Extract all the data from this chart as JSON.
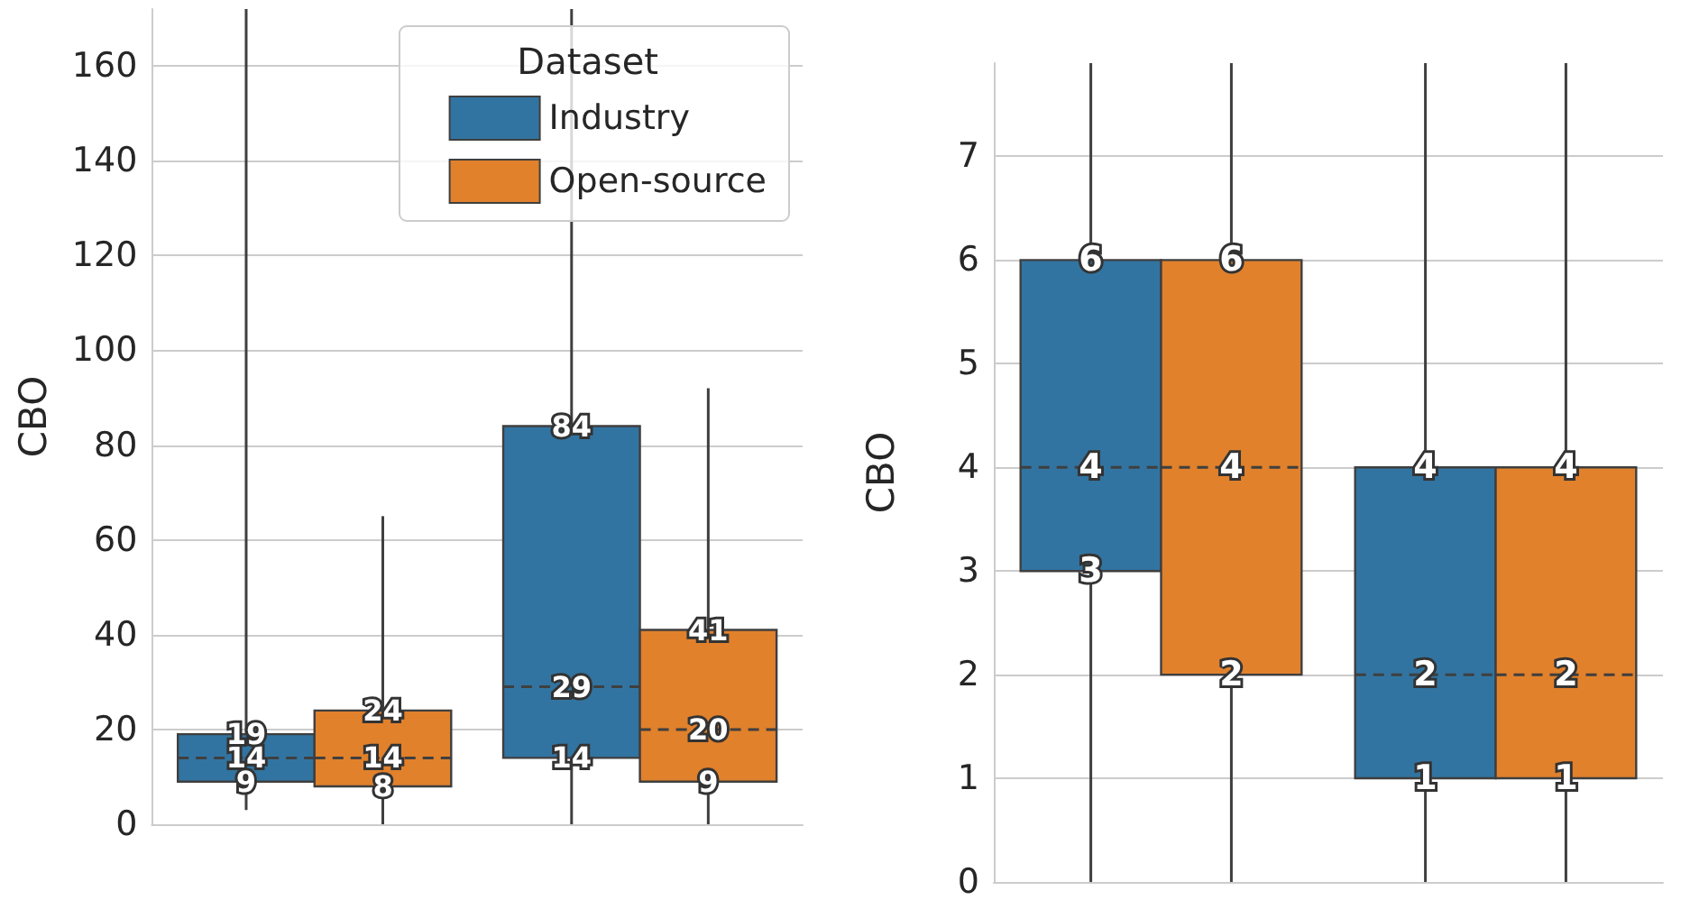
{
  "chart_data": [
    {
      "type": "box",
      "ylabel": "CBO",
      "categories": [
        null,
        null
      ],
      "ylim": [
        0,
        172
      ],
      "yticks": [
        0,
        20,
        40,
        60,
        80,
        100,
        120,
        140,
        160
      ],
      "grid": "y",
      "legend": "top right",
      "legend_title": "Dataset",
      "series": [
        {
          "name": "Industry",
          "color": "#3274a1",
          "boxes": [
            {
              "low": 3,
              "q1": 9,
              "median": 14,
              "q3": 19,
              "high": 172
            },
            {
              "low": 0,
              "q1": 14,
              "median": 29,
              "q3": 84,
              "high": 172
            }
          ],
          "value_labels": [
            [
              "9",
              "14",
              "19"
            ],
            [
              "14",
              "29",
              "84"
            ]
          ]
        },
        {
          "name": "Open-source",
          "color": "#e1812c",
          "boxes": [
            {
              "low": 0,
              "q1": 8,
              "median": 14,
              "q3": 24,
              "high": 65
            },
            {
              "low": 0,
              "q1": 9,
              "median": 20,
              "q3": 41,
              "high": 92
            }
          ],
          "value_labels": [
            [
              "8",
              "14",
              "24"
            ],
            [
              "9",
              "20",
              "41"
            ]
          ]
        }
      ]
    },
    {
      "type": "box",
      "ylabel": "CBO",
      "categories": [
        null,
        null
      ],
      "ylim": [
        0,
        7.9
      ],
      "yticks": [
        0,
        1,
        2,
        3,
        4,
        5,
        6,
        7
      ],
      "grid": "y",
      "series": [
        {
          "color": "#3274a1",
          "boxes": [
            {
              "low": 0,
              "q1": 3,
              "median": 4,
              "q3": 6,
              "high": 7.9
            },
            {
              "low": 0,
              "q1": 1,
              "median": 2,
              "q3": 4,
              "high": 7.9
            }
          ],
          "value_labels": [
            [
              "3",
              "4",
              "6"
            ],
            [
              "1",
              "2",
              "4"
            ]
          ]
        },
        {
          "color": "#e1812c",
          "boxes": [
            {
              "low": 0,
              "q1": 2,
              "median": 4,
              "q3": 6,
              "high": 7.9
            },
            {
              "low": 0,
              "q1": 1,
              "median": 2,
              "q3": 4,
              "high": 7.9
            }
          ],
          "value_labels": [
            [
              "2",
              "4",
              "6"
            ],
            [
              "1",
              "2",
              "4"
            ]
          ]
        }
      ]
    }
  ]
}
